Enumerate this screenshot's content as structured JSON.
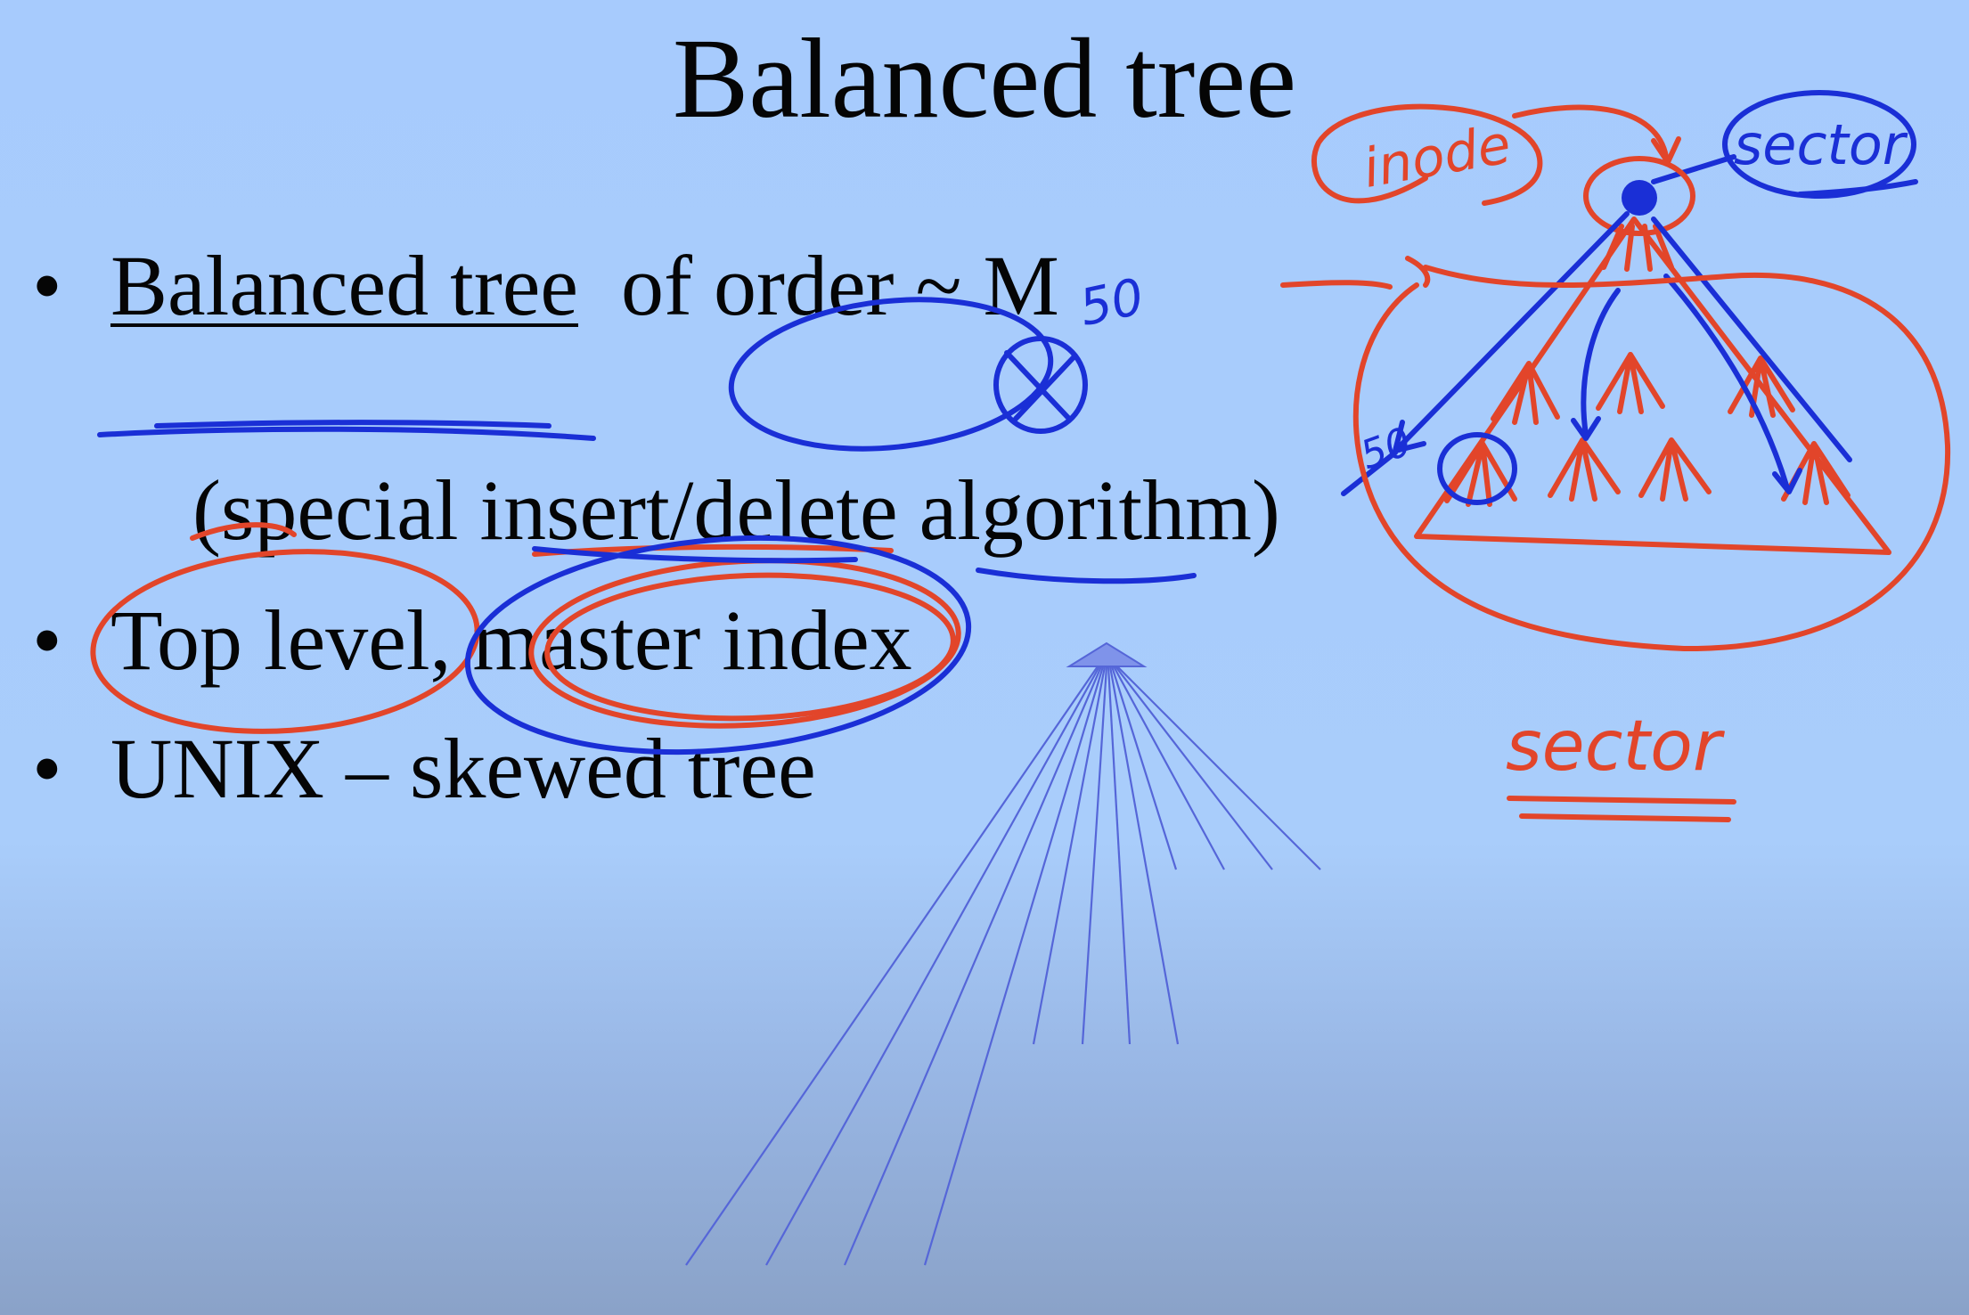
{
  "slide": {
    "title": "Balanced tree",
    "bullets": [
      {
        "prefix": "Balanced tree",
        "suffix": "  of order ~ M",
        "continuation": "(special insert/delete algorithm)"
      },
      {
        "text": "Top level, master index"
      },
      {
        "text": "UNIX – skewed tree"
      }
    ],
    "bullet_glyph": "•"
  },
  "annotations": {
    "inode_label": "inode",
    "sector_top_label": "sector",
    "sector_bottom_label": "sector",
    "order_note": "50",
    "side_note": "50",
    "colors": {
      "red_ink": "#e2452a",
      "blue_ink": "#1a2fd6",
      "fan_lines": "#5566d8"
    }
  }
}
